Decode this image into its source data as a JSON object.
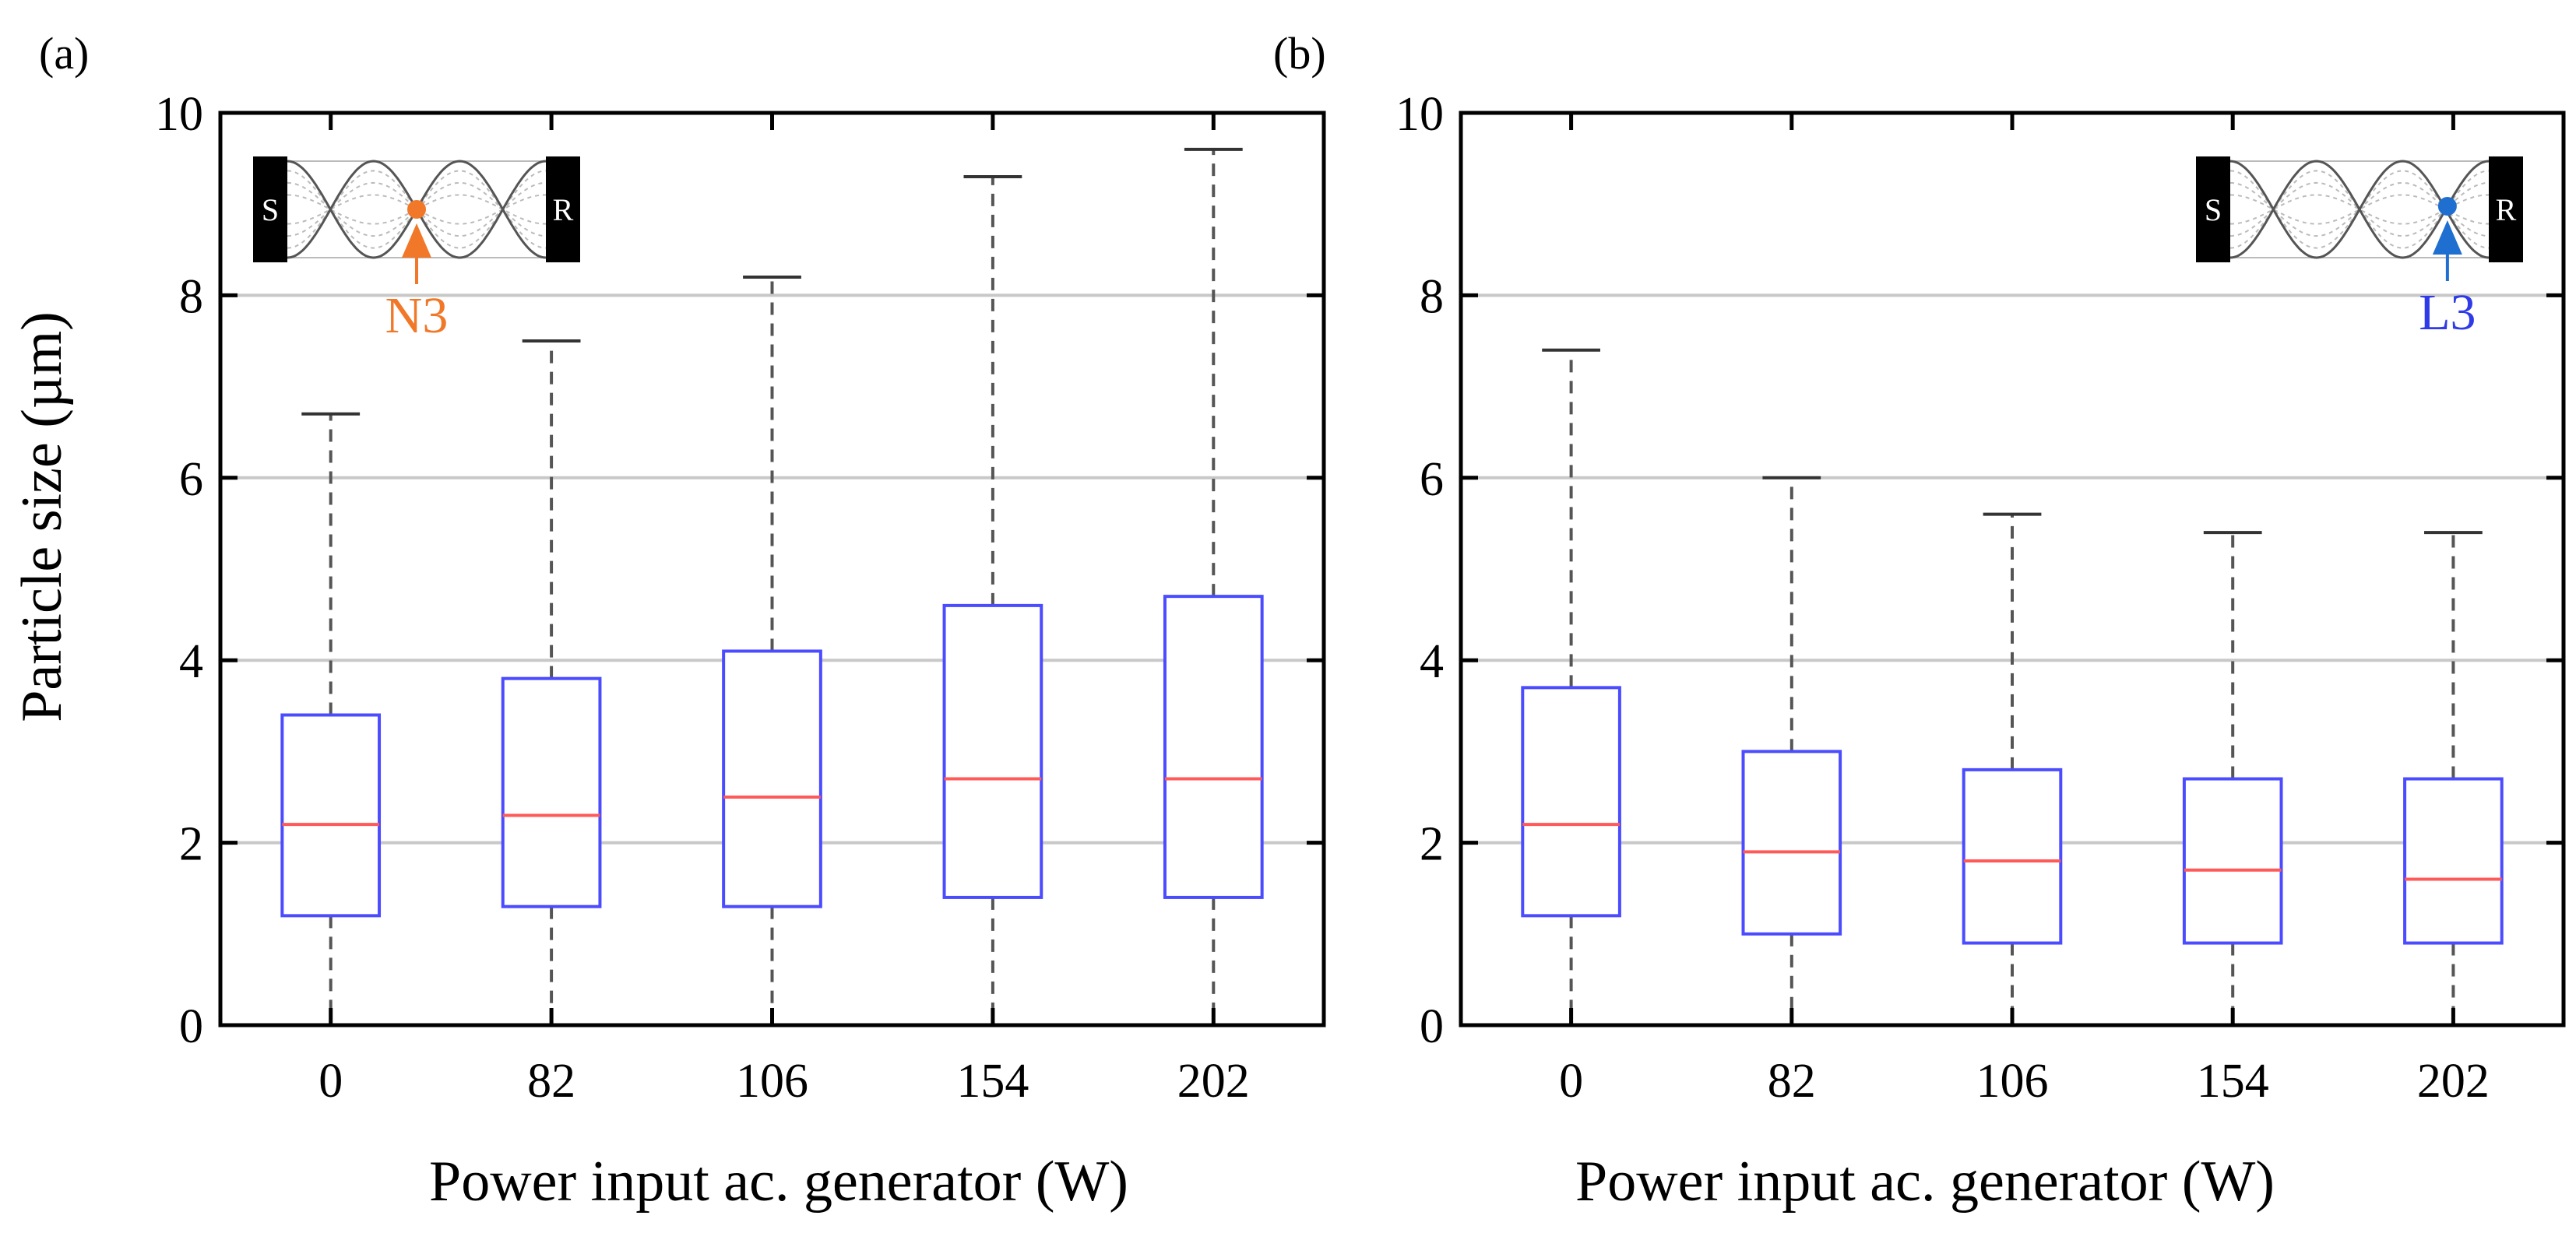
{
  "colors": {
    "box": "#4B4BFF",
    "median": "#FF5A5A",
    "whisker": "#555555",
    "grid": "#C8C8C8",
    "axes": "#000000",
    "orange": "#F07828",
    "blue": "#1F6FD0"
  },
  "chart_data": [
    {
      "type": "box",
      "panel_label": "(a)",
      "categories": [
        "0",
        "82",
        "106",
        "154",
        "202"
      ],
      "xlabel": "Power input ac. generator (W)",
      "ylabel": "Particle size (µm)",
      "ylim": [
        0,
        10
      ],
      "yticks": [
        "0",
        "2",
        "4",
        "6",
        "8",
        "10"
      ],
      "grid": true,
      "boxes": [
        {
          "min": 0,
          "q1": 1.2,
          "median": 2.2,
          "q3": 3.4,
          "max": 6.7
        },
        {
          "min": 0,
          "q1": 1.3,
          "median": 2.3,
          "q3": 3.8,
          "max": 7.5
        },
        {
          "min": 0,
          "q1": 1.3,
          "median": 2.5,
          "q3": 4.1,
          "max": 8.2
        },
        {
          "min": 0,
          "q1": 1.4,
          "median": 2.7,
          "q3": 4.6,
          "max": 9.3
        },
        {
          "min": 0,
          "q1": 1.4,
          "median": 2.7,
          "q3": 4.7,
          "max": 9.6
        }
      ],
      "inset": {
        "left_label": "S",
        "right_label": "R",
        "marker_label": "N3",
        "marker_type": "node",
        "marker_color": "orange",
        "position": "top-left"
      }
    },
    {
      "type": "box",
      "panel_label": "(b)",
      "categories": [
        "0",
        "82",
        "106",
        "154",
        "202"
      ],
      "xlabel": "Power input ac. generator (W)",
      "ylabel": "",
      "ylim": [
        0,
        10
      ],
      "yticks": [
        "0",
        "2",
        "4",
        "6",
        "8",
        "10"
      ],
      "grid": true,
      "boxes": [
        {
          "min": 0,
          "q1": 1.2,
          "median": 2.2,
          "q3": 3.7,
          "max": 7.4
        },
        {
          "min": 0,
          "q1": 1.0,
          "median": 1.9,
          "q3": 3.0,
          "max": 6.0
        },
        {
          "min": 0,
          "q1": 0.9,
          "median": 1.8,
          "q3": 2.8,
          "max": 5.6
        },
        {
          "min": 0,
          "q1": 0.9,
          "median": 1.7,
          "q3": 2.7,
          "max": 5.4
        },
        {
          "min": 0,
          "q1": 0.9,
          "median": 1.6,
          "q3": 2.7,
          "max": 5.4
        }
      ],
      "inset": {
        "left_label": "S",
        "right_label": "R",
        "marker_label": "L3",
        "marker_type": "loop",
        "marker_color": "blue",
        "position": "top-right"
      }
    }
  ]
}
